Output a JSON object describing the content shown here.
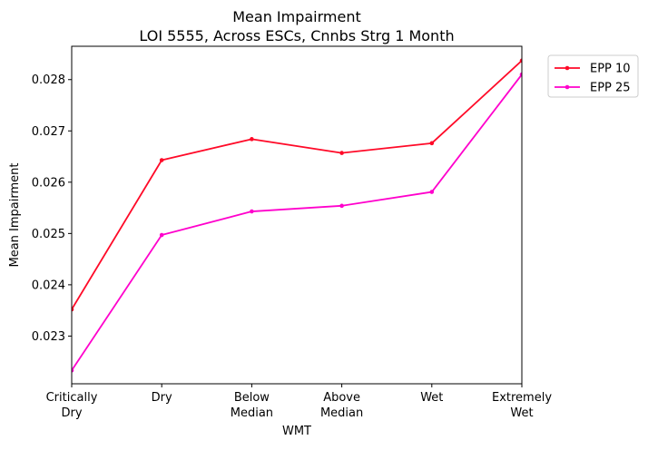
{
  "chart_data": {
    "type": "line",
    "title_line1": "Mean Impairment",
    "title_line2": "LOI 5555, Across ESCs, Cnnbs Strg 1 Month",
    "xlabel": "WMT",
    "ylabel": "Mean Impairment",
    "categories": [
      [
        "Critically",
        "Dry"
      ],
      [
        "Dry"
      ],
      [
        "Below",
        "Median"
      ],
      [
        "Above",
        "Median"
      ],
      [
        "Wet"
      ],
      [
        "Extremely",
        "Wet"
      ]
    ],
    "ylim": [
      0.02207,
      0.02865
    ],
    "yticks": [
      0.023,
      0.024,
      0.025,
      0.026,
      0.027,
      0.028
    ],
    "ytick_labels": [
      "0.023",
      "0.024",
      "0.025",
      "0.026",
      "0.027",
      "0.028"
    ],
    "grid": false,
    "legend_position": "outside-top-right",
    "series": [
      {
        "name": "EPP 10",
        "color": "#ff0a28",
        "values": [
          0.02352,
          0.02643,
          0.02684,
          0.02657,
          0.02676,
          0.02837
        ]
      },
      {
        "name": "EPP 25",
        "color": "#ff00cc",
        "values": [
          0.02233,
          0.02497,
          0.02543,
          0.02554,
          0.02581,
          0.0281
        ]
      }
    ]
  }
}
